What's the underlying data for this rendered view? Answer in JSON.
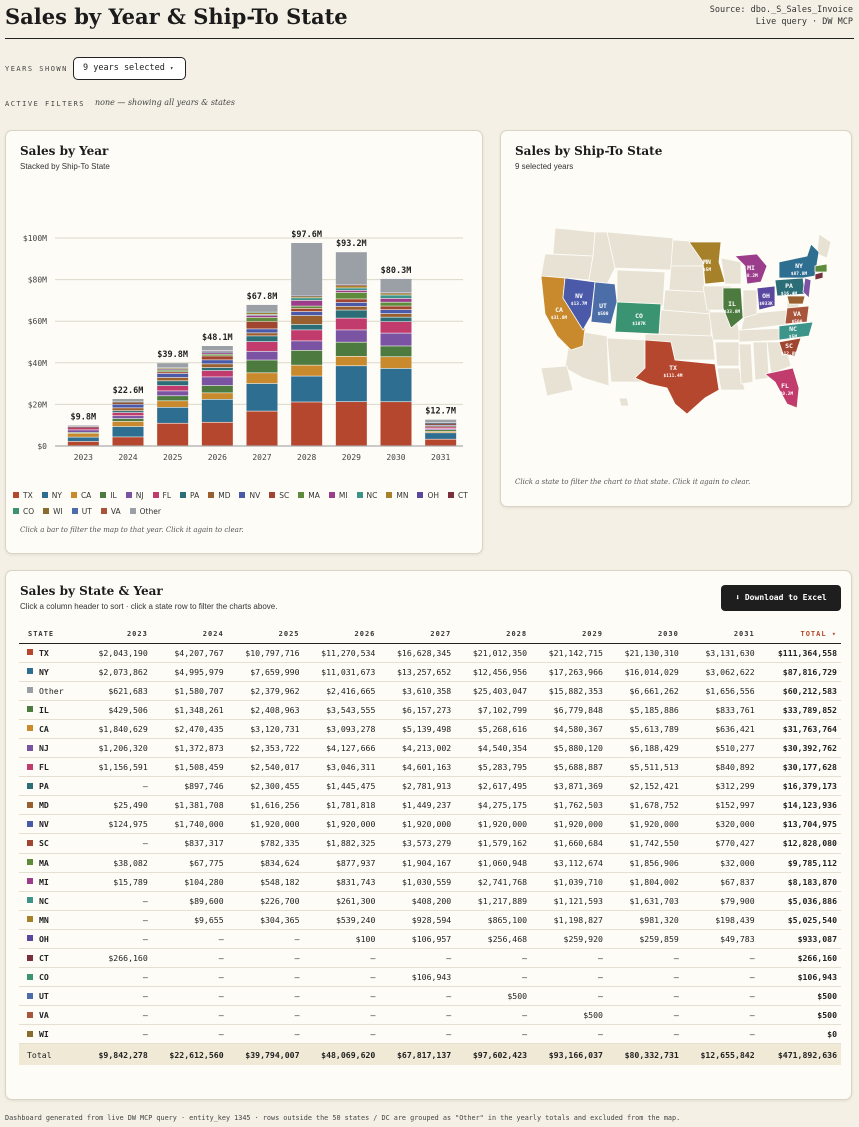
{
  "header": {
    "title": "Sales by Year & Ship-To State",
    "source_line1": "Source: dbo._S_Sales_Invoice",
    "source_line2": "Live query · DW MCP"
  },
  "controls": {
    "years_label": "YEARS SHOWN",
    "years_value": "9 years selected",
    "filters_label": "ACTIVE FILTERS",
    "filters_value": "none — showing all years & states"
  },
  "colors": {
    "TX": "#b5472e",
    "NY": "#2e6e91",
    "Other": "#9aa0a6",
    "IL": "#4c7a3f",
    "CA": "#c88a2c",
    "NJ": "#7b53a3",
    "FL": "#c23b6d",
    "PA": "#2c6e77",
    "MD": "#9a5f2e",
    "NV": "#4a5aa8",
    "SC": "#a0452f",
    "MA": "#5e8a3c",
    "MI": "#9b3d8a",
    "NC": "#3c948a",
    "MN": "#a7812a",
    "OH": "#5a48a0",
    "CT": "#7a2f3c",
    "CO": "#3a9472",
    "UT": "#4c6ea8",
    "VA": "#a8553c",
    "WI": "#8a6c30"
  },
  "year_chart": {
    "title": "Sales by Year",
    "subtitle": "Stacked by Ship-To State",
    "note": "Click a bar to filter the map to that year. Click it again to clear.",
    "legend": [
      "TX",
      "NY",
      "CA",
      "IL",
      "NJ",
      "FL",
      "PA",
      "MD",
      "NV",
      "SC",
      "MA",
      "MI",
      "NC",
      "MN",
      "OH",
      "CT",
      "CO",
      "WI",
      "UT",
      "VA",
      "Other"
    ]
  },
  "chart_data": {
    "type": "bar",
    "stacked": true,
    "categories": [
      "2023",
      "2024",
      "2025",
      "2026",
      "2027",
      "2028",
      "2029",
      "2030",
      "2031"
    ],
    "totals_labels": [
      "$9.8M",
      "$22.6M",
      "$39.8M",
      "$48.1M",
      "$67.8M",
      "$97.6M",
      "$93.2M",
      "$80.3M",
      "$12.7M"
    ],
    "y_ticks": [
      "$0",
      "$20M",
      "$40M",
      "$60M",
      "$80M",
      "$100M"
    ],
    "ylim": [
      0,
      100000000
    ],
    "grid": true,
    "legend_position": "bottom",
    "stack_order": [
      "TX",
      "NY",
      "CA",
      "IL",
      "NJ",
      "FL",
      "PA",
      "MD",
      "NV",
      "SC",
      "MA",
      "MI",
      "NC",
      "MN",
      "OH",
      "CT",
      "CO",
      "WI",
      "UT",
      "VA",
      "Other"
    ],
    "series": [
      {
        "name": "TX",
        "values": [
          2043190,
          4207767,
          10797716,
          11270534,
          16628345,
          21012350,
          21142715,
          21130310,
          3131630
        ]
      },
      {
        "name": "NY",
        "values": [
          2073862,
          4995979,
          7659990,
          11031673,
          13257652,
          12456956,
          17263966,
          16014029,
          3062622
        ]
      },
      {
        "name": "CA",
        "values": [
          1840629,
          2470435,
          3120731,
          3093278,
          5139498,
          5268616,
          4580367,
          5613789,
          636421
        ]
      },
      {
        "name": "IL",
        "values": [
          429506,
          1348261,
          2408963,
          3543555,
          6157273,
          7102799,
          6779848,
          5185886,
          833761
        ]
      },
      {
        "name": "NJ",
        "values": [
          1206320,
          1372873,
          2353722,
          4127666,
          4213002,
          4540354,
          5880120,
          6188429,
          510277
        ]
      },
      {
        "name": "FL",
        "values": [
          1156591,
          1508459,
          2540017,
          3046311,
          4601163,
          5283795,
          5688887,
          5511513,
          840892
        ]
      },
      {
        "name": "PA",
        "values": [
          0,
          897746,
          2300455,
          1445475,
          2781913,
          2617495,
          3871369,
          2152421,
          312299
        ]
      },
      {
        "name": "MD",
        "values": [
          25490,
          1381708,
          1616256,
          1781818,
          1449237,
          4275175,
          1762503,
          1678752,
          152997
        ]
      },
      {
        "name": "NV",
        "values": [
          124975,
          1740000,
          1920000,
          1920000,
          1920000,
          1920000,
          1920000,
          1920000,
          320000
        ]
      },
      {
        "name": "SC",
        "values": [
          0,
          837317,
          782335,
          1882325,
          3573279,
          1579162,
          1660684,
          1742550,
          770427
        ]
      },
      {
        "name": "MA",
        "values": [
          38082,
          67775,
          834624,
          877937,
          1904167,
          1060948,
          3112674,
          1856906,
          32000
        ]
      },
      {
        "name": "MI",
        "values": [
          15789,
          104280,
          548182,
          831743,
          1030559,
          2741768,
          1039710,
          1804002,
          67837
        ]
      },
      {
        "name": "NC",
        "values": [
          0,
          89600,
          226700,
          261300,
          408200,
          1217889,
          1121593,
          1631703,
          79900
        ]
      },
      {
        "name": "MN",
        "values": [
          0,
          9655,
          304365,
          539240,
          928594,
          865100,
          1198827,
          981320,
          198439
        ]
      },
      {
        "name": "OH",
        "values": [
          0,
          0,
          0,
          100,
          106957,
          256468,
          259920,
          259859,
          49783
        ]
      },
      {
        "name": "CT",
        "values": [
          266160,
          0,
          0,
          0,
          0,
          0,
          0,
          0,
          0
        ]
      },
      {
        "name": "CO",
        "values": [
          0,
          0,
          0,
          0,
          106943,
          0,
          0,
          0,
          0
        ]
      },
      {
        "name": "WI",
        "values": [
          0,
          0,
          0,
          0,
          0,
          0,
          0,
          0,
          0
        ]
      },
      {
        "name": "UT",
        "values": [
          0,
          0,
          0,
          0,
          0,
          500,
          0,
          0,
          0
        ]
      },
      {
        "name": "VA",
        "values": [
          0,
          0,
          0,
          0,
          0,
          0,
          500,
          0,
          0
        ]
      },
      {
        "name": "Other",
        "values": [
          621683,
          1580707,
          2379962,
          2416665,
          3610358,
          25403047,
          15882353,
          6661262,
          1656556
        ]
      }
    ]
  },
  "map_chart": {
    "title": "Sales by Ship-To State",
    "subtitle": "9 selected years",
    "note": "Click a state to filter the chart to that state. Click it again to clear.",
    "labels": [
      {
        "state": "MN",
        "value": "$5M"
      },
      {
        "state": "MI",
        "value": "$8.2M"
      },
      {
        "state": "NY",
        "value": "$87.8M"
      },
      {
        "state": "NV",
        "value": "$13.7M"
      },
      {
        "state": "UT",
        "value": "$500"
      },
      {
        "state": "CA",
        "value": "$31.8M"
      },
      {
        "state": "CO",
        "value": "$107K"
      },
      {
        "state": "IL",
        "value": "$33.8M"
      },
      {
        "state": "OH",
        "value": "$933K"
      },
      {
        "state": "PA",
        "value": "$16.4M"
      },
      {
        "state": "VA",
        "value": "$500"
      },
      {
        "state": "NC",
        "value": "$5M"
      },
      {
        "state": "SC",
        "value": "$12.8M"
      },
      {
        "state": "TX",
        "value": "$111.4M"
      },
      {
        "state": "FL",
        "value": "$30.2M"
      }
    ]
  },
  "table": {
    "title": "Sales by State & Year",
    "subtitle": "Click a column header to sort · click a state row to filter the charts above.",
    "download_label": "⬇ Download to Excel",
    "headers": [
      "STATE",
      "2023",
      "2024",
      "2025",
      "2026",
      "2027",
      "2028",
      "2029",
      "2030",
      "2031",
      "TOTAL ▾"
    ],
    "rows": [
      {
        "state": "TX",
        "cells": [
          "$2,043,190",
          "$4,207,767",
          "$10,797,716",
          "$11,270,534",
          "$16,628,345",
          "$21,012,350",
          "$21,142,715",
          "$21,130,310",
          "$3,131,630",
          "$111,364,558"
        ]
      },
      {
        "state": "NY",
        "cells": [
          "$2,073,862",
          "$4,995,979",
          "$7,659,990",
          "$11,031,673",
          "$13,257,652",
          "$12,456,956",
          "$17,263,966",
          "$16,014,029",
          "$3,062,622",
          "$87,816,729"
        ]
      },
      {
        "state": "Other",
        "cells": [
          "$621,683",
          "$1,580,707",
          "$2,379,962",
          "$2,416,665",
          "$3,610,358",
          "$25,403,047",
          "$15,882,353",
          "$6,661,262",
          "$1,656,556",
          "$60,212,583"
        ]
      },
      {
        "state": "IL",
        "cells": [
          "$429,506",
          "$1,348,261",
          "$2,408,963",
          "$3,543,555",
          "$6,157,273",
          "$7,102,799",
          "$6,779,848",
          "$5,185,886",
          "$833,761",
          "$33,789,852"
        ]
      },
      {
        "state": "CA",
        "cells": [
          "$1,840,629",
          "$2,470,435",
          "$3,120,731",
          "$3,093,278",
          "$5,139,498",
          "$5,268,616",
          "$4,580,367",
          "$5,613,789",
          "$636,421",
          "$31,763,764"
        ]
      },
      {
        "state": "NJ",
        "cells": [
          "$1,206,320",
          "$1,372,873",
          "$2,353,722",
          "$4,127,666",
          "$4,213,002",
          "$4,540,354",
          "$5,880,120",
          "$6,188,429",
          "$510,277",
          "$30,392,762"
        ]
      },
      {
        "state": "FL",
        "cells": [
          "$1,156,591",
          "$1,508,459",
          "$2,540,017",
          "$3,046,311",
          "$4,601,163",
          "$5,283,795",
          "$5,688,887",
          "$5,511,513",
          "$840,892",
          "$30,177,628"
        ]
      },
      {
        "state": "PA",
        "cells": [
          "–",
          "$897,746",
          "$2,300,455",
          "$1,445,475",
          "$2,781,913",
          "$2,617,495",
          "$3,871,369",
          "$2,152,421",
          "$312,299",
          "$16,379,173"
        ]
      },
      {
        "state": "MD",
        "cells": [
          "$25,490",
          "$1,381,708",
          "$1,616,256",
          "$1,781,818",
          "$1,449,237",
          "$4,275,175",
          "$1,762,503",
          "$1,678,752",
          "$152,997",
          "$14,123,936"
        ]
      },
      {
        "state": "NV",
        "cells": [
          "$124,975",
          "$1,740,000",
          "$1,920,000",
          "$1,920,000",
          "$1,920,000",
          "$1,920,000",
          "$1,920,000",
          "$1,920,000",
          "$320,000",
          "$13,704,975"
        ]
      },
      {
        "state": "SC",
        "cells": [
          "–",
          "$837,317",
          "$782,335",
          "$1,882,325",
          "$3,573,279",
          "$1,579,162",
          "$1,660,684",
          "$1,742,550",
          "$770,427",
          "$12,828,080"
        ]
      },
      {
        "state": "MA",
        "cells": [
          "$38,082",
          "$67,775",
          "$834,624",
          "$877,937",
          "$1,904,167",
          "$1,060,948",
          "$3,112,674",
          "$1,856,906",
          "$32,000",
          "$9,785,112"
        ]
      },
      {
        "state": "MI",
        "cells": [
          "$15,789",
          "$104,280",
          "$548,182",
          "$831,743",
          "$1,030,559",
          "$2,741,768",
          "$1,039,710",
          "$1,804,002",
          "$67,837",
          "$8,183,870"
        ]
      },
      {
        "state": "NC",
        "cells": [
          "–",
          "$89,600",
          "$226,700",
          "$261,300",
          "$408,200",
          "$1,217,889",
          "$1,121,593",
          "$1,631,703",
          "$79,900",
          "$5,036,886"
        ]
      },
      {
        "state": "MN",
        "cells": [
          "–",
          "$9,655",
          "$304,365",
          "$539,240",
          "$928,594",
          "$865,100",
          "$1,198,827",
          "$981,320",
          "$198,439",
          "$5,025,540"
        ]
      },
      {
        "state": "OH",
        "cells": [
          "–",
          "–",
          "–",
          "$100",
          "$106,957",
          "$256,468",
          "$259,920",
          "$259,859",
          "$49,783",
          "$933,087"
        ]
      },
      {
        "state": "CT",
        "cells": [
          "$266,160",
          "–",
          "–",
          "–",
          "–",
          "–",
          "–",
          "–",
          "–",
          "$266,160"
        ]
      },
      {
        "state": "CO",
        "cells": [
          "–",
          "–",
          "–",
          "–",
          "$106,943",
          "–",
          "–",
          "–",
          "–",
          "$106,943"
        ]
      },
      {
        "state": "UT",
        "cells": [
          "–",
          "–",
          "–",
          "–",
          "–",
          "$500",
          "–",
          "–",
          "–",
          "$500"
        ]
      },
      {
        "state": "VA",
        "cells": [
          "–",
          "–",
          "–",
          "–",
          "–",
          "–",
          "$500",
          "–",
          "–",
          "$500"
        ]
      },
      {
        "state": "WI",
        "cells": [
          "–",
          "–",
          "–",
          "–",
          "–",
          "–",
          "–",
          "–",
          "–",
          "$0"
        ]
      }
    ],
    "total_row": {
      "label": "Total",
      "cells": [
        "$9,842,278",
        "$22,612,560",
        "$39,794,007",
        "$48,069,620",
        "$67,817,137",
        "$97,602,423",
        "$93,166,037",
        "$80,332,731",
        "$12,655,842",
        "$471,892,636"
      ]
    }
  },
  "footer": {
    "text": "Dashboard generated from live DW MCP query · entity_key 1345 · rows outside the 50 states / DC are grouped as \"Other\" in the yearly totals and excluded from the map."
  }
}
